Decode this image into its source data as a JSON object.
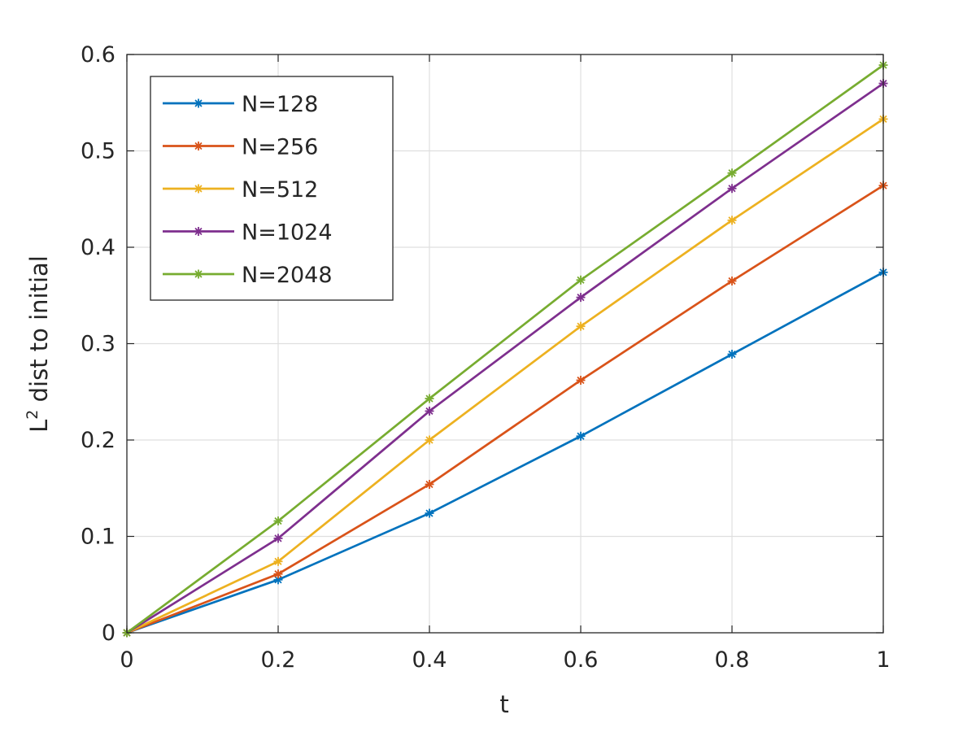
{
  "chart_data": {
    "type": "line",
    "title": "",
    "xlabel": "t",
    "ylabel_main": "L",
    "ylabel_sup": "2",
    "ylabel_rest": " dist to initial",
    "xlim": [
      0,
      1
    ],
    "ylim": [
      0,
      0.6
    ],
    "grid": true,
    "legend_position": "top-left",
    "marker": "asterisk",
    "x": [
      0,
      0.2,
      0.4,
      0.6,
      0.8,
      1
    ],
    "xticks": [
      0,
      0.2,
      0.4,
      0.6,
      0.8,
      1
    ],
    "xtick_labels": [
      "0",
      "0.2",
      "0.4",
      "0.6",
      "0.8",
      "1"
    ],
    "yticks": [
      0,
      0.1,
      0.2,
      0.3,
      0.4,
      0.5,
      0.6
    ],
    "ytick_labels": [
      "0",
      "0.1",
      "0.2",
      "0.3",
      "0.4",
      "0.5",
      "0.6"
    ],
    "series": [
      {
        "name": "N=128",
        "color": "#0072BD",
        "values": [
          0,
          0.055,
          0.124,
          0.204,
          0.289,
          0.374
        ]
      },
      {
        "name": "N=256",
        "color": "#D95319",
        "values": [
          0,
          0.061,
          0.154,
          0.262,
          0.365,
          0.464
        ]
      },
      {
        "name": "N=512",
        "color": "#EDB120",
        "values": [
          0,
          0.074,
          0.2,
          0.318,
          0.428,
          0.533
        ]
      },
      {
        "name": "N=1024",
        "color": "#7E2F8E",
        "values": [
          0,
          0.098,
          0.23,
          0.348,
          0.461,
          0.57
        ]
      },
      {
        "name": "N=2048",
        "color": "#77AC30",
        "values": [
          0,
          0.116,
          0.243,
          0.366,
          0.477,
          0.589
        ]
      }
    ]
  }
}
